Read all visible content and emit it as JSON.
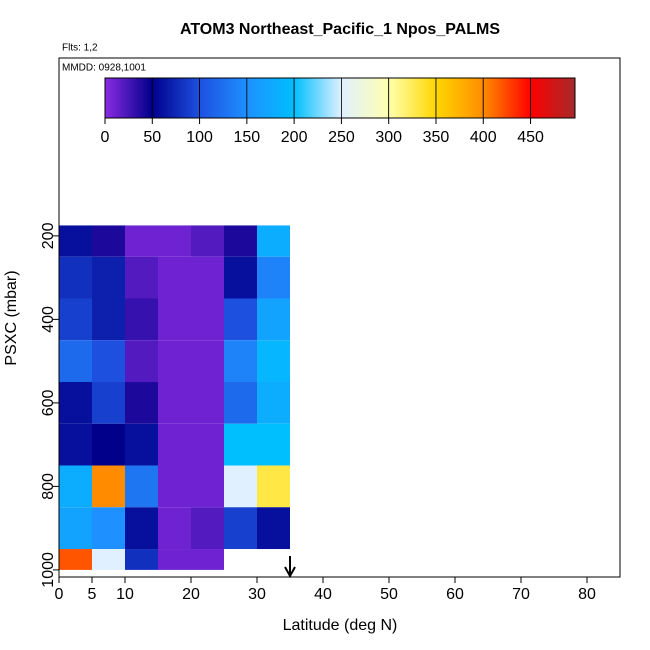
{
  "chart_data": {
    "type": "heatmap",
    "title": "ATOM3 Northeast_Pacific_1 Npos_PALMS",
    "subtitle": "Flts: 1,2",
    "annotation": "MMDD: 0928,1001",
    "xlabel": "Latitude (deg N)",
    "ylabel": "PSXC (mbar)",
    "xlim": [
      0,
      85
    ],
    "xticks": [
      0,
      5,
      10,
      20,
      30,
      40,
      50,
      60,
      70,
      80
    ],
    "ylim": [
      1017,
      -226
    ],
    "yticks": [
      200,
      400,
      600,
      800,
      1000
    ],
    "x_edges": [
      0,
      5,
      10,
      15,
      20,
      25,
      30,
      35
    ],
    "y_edges": [
      175,
      250,
      350,
      450,
      550,
      650,
      750,
      850,
      950,
      1000
    ],
    "values": [
      [
        60,
        40,
        10,
        10,
        20,
        40,
        180
      ],
      [
        80,
        70,
        20,
        10,
        10,
        60,
        140
      ],
      [
        90,
        70,
        30,
        10,
        10,
        100,
        170
      ],
      [
        120,
        100,
        20,
        10,
        10,
        140,
        190
      ],
      [
        60,
        90,
        40,
        10,
        10,
        120,
        180
      ],
      [
        60,
        50,
        60,
        10,
        10,
        200,
        200
      ],
      [
        180,
        400,
        130,
        10,
        10,
        250,
        330
      ],
      [
        170,
        150,
        60,
        10,
        20,
        90,
        60
      ],
      [
        420,
        250,
        80,
        10,
        10,
        null,
        null
      ]
    ],
    "colorbar": {
      "lim": [
        0,
        497
      ],
      "ticks": [
        0,
        50,
        100,
        150,
        200,
        250,
        300,
        350,
        400,
        450
      ],
      "stops": [
        0,
        50,
        100,
        150,
        200,
        250,
        300,
        350,
        400,
        450,
        497
      ],
      "colors": [
        "#8a2be2",
        "#00008b",
        "#1e50e0",
        "#1e90ff",
        "#00bfff",
        "#e0f0ff",
        "#ffffb0",
        "#ffd700",
        "#ff8c00",
        "#ff0000",
        "#a52a2a"
      ]
    },
    "arrow_lat": 35
  }
}
